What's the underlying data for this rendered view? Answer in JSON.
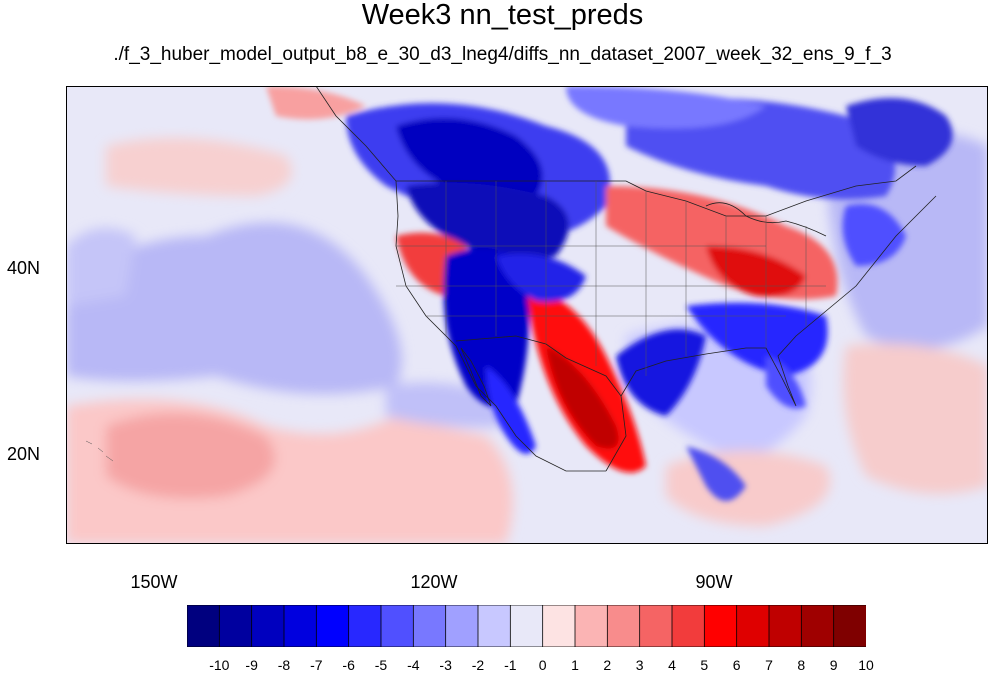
{
  "title": "Week3 nn_test_preds",
  "subtitle": "./f_3_huber_model_output_b8_e_30_d3_lneg4/diffs_nn_dataset_2007_week_32_ens_9_f_3",
  "map": {
    "projection": "cylindrical equidistant",
    "lon_range": [
      -160,
      -62
    ],
    "lat_range": [
      11,
      60
    ],
    "lat_labels": [
      "40N",
      "20N"
    ],
    "lon_labels": [
      "150W",
      "120W",
      "90W"
    ],
    "field": "temperature difference (predicted)",
    "boundaries": "continental outlines, US states, Canada, Mexico"
  },
  "colorbar": {
    "labels": [
      "-10",
      "-9",
      "-8",
      "-7",
      "-6",
      "-5",
      "-4",
      "-3",
      "-2",
      "-1",
      "0",
      "1",
      "2",
      "3",
      "4",
      "5",
      "6",
      "7",
      "8",
      "9",
      "10"
    ],
    "colors": [
      "#00007f",
      "#00009f",
      "#0000bf",
      "#0000df",
      "#0000ff",
      "#2828ff",
      "#5050ff",
      "#7878ff",
      "#a0a0ff",
      "#c8c8ff",
      "#e8e8f8",
      "#fde3e3",
      "#fbb4b4",
      "#f88c8c",
      "#f56464",
      "#f23c3c",
      "#ff0000",
      "#df0000",
      "#bf0000",
      "#9f0000",
      "#7f0000"
    ]
  }
}
